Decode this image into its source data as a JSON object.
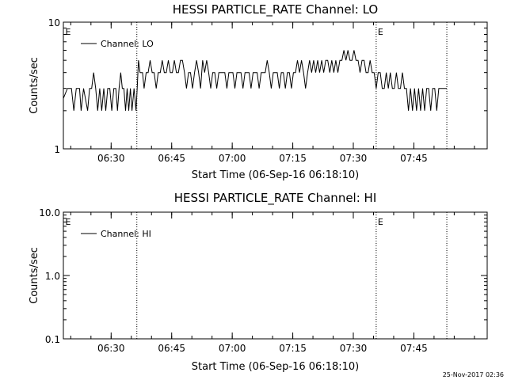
{
  "chart_data": [
    {
      "type": "line",
      "title": "HESSI PARTICLE_RATE Channel: LO",
      "xlabel": "Start Time (06-Sep-16 06:18:10)",
      "ylabel": "Counts/sec",
      "yscale": "log",
      "ylim": [
        1,
        10
      ],
      "xlim_minutes_after_start": [
        0,
        105
      ],
      "x_ticks": [
        {
          "label": "06:30",
          "minutes": 11.833
        },
        {
          "label": "06:45",
          "minutes": 26.833
        },
        {
          "label": "07:00",
          "minutes": 41.833
        },
        {
          "label": "07:15",
          "minutes": 56.833
        },
        {
          "label": "07:30",
          "minutes": 71.833
        },
        {
          "label": "07:45",
          "minutes": 86.833
        }
      ],
      "y_ticks": [
        {
          "label": "1",
          "value": 1
        },
        {
          "label": "10",
          "value": 10
        }
      ],
      "vlines_minutes": [
        18.2,
        77.5,
        95.0
      ],
      "annotations": [
        {
          "text": "E",
          "minutes": 0.3
        },
        {
          "text": "E",
          "minutes": 77.7
        }
      ],
      "legend": {
        "position": "top-left",
        "entries": [
          "Channel: LO"
        ]
      },
      "series": [
        {
          "name": "Channel: LO",
          "points": [
            [
              0.0,
              2.5
            ],
            [
              1.0,
              3.0
            ],
            [
              2.0,
              3.0
            ],
            [
              2.6,
              2.0
            ],
            [
              3.2,
              3.0
            ],
            [
              4.0,
              3.0
            ],
            [
              4.4,
              2.0
            ],
            [
              5.0,
              3.0
            ],
            [
              6.0,
              2.0
            ],
            [
              6.5,
              3.0
            ],
            [
              7.0,
              3.0
            ],
            [
              7.5,
              4.0
            ],
            [
              8.0,
              3.0
            ],
            [
              8.5,
              2.0
            ],
            [
              9.0,
              3.0
            ],
            [
              9.5,
              2.0
            ],
            [
              10.0,
              3.0
            ],
            [
              10.5,
              2.0
            ],
            [
              11.0,
              3.0
            ],
            [
              11.5,
              3.0
            ],
            [
              12.0,
              2.0
            ],
            [
              12.5,
              3.0
            ],
            [
              13.0,
              3.0
            ],
            [
              13.4,
              2.0
            ],
            [
              13.8,
              3.0
            ],
            [
              14.2,
              4.0
            ],
            [
              14.6,
              3.0
            ],
            [
              15.0,
              3.0
            ],
            [
              15.4,
              2.0
            ],
            [
              15.8,
              3.0
            ],
            [
              16.2,
              2.0
            ],
            [
              16.6,
              3.0
            ],
            [
              17.0,
              2.0
            ],
            [
              17.5,
              3.0
            ],
            [
              18.0,
              2.0
            ],
            [
              18.3,
              3.0
            ],
            [
              18.6,
              5.0
            ],
            [
              19.0,
              4.0
            ],
            [
              19.6,
              4.0
            ],
            [
              20.0,
              3.0
            ],
            [
              20.5,
              4.0
            ],
            [
              21.0,
              4.0
            ],
            [
              21.5,
              5.0
            ],
            [
              22.0,
              4.0
            ],
            [
              22.5,
              4.0
            ],
            [
              23.0,
              3.0
            ],
            [
              23.5,
              4.0
            ],
            [
              24.0,
              4.0
            ],
            [
              24.5,
              5.0
            ],
            [
              25.0,
              4.0
            ],
            [
              25.5,
              4.0
            ],
            [
              26.0,
              5.0
            ],
            [
              26.5,
              4.0
            ],
            [
              27.0,
              4.0
            ],
            [
              27.5,
              5.0
            ],
            [
              28.0,
              4.0
            ],
            [
              28.5,
              4.0
            ],
            [
              29.0,
              5.0
            ],
            [
              29.5,
              5.0
            ],
            [
              30.0,
              4.0
            ],
            [
              30.5,
              3.0
            ],
            [
              31.0,
              4.0
            ],
            [
              31.5,
              4.0
            ],
            [
              32.0,
              3.0
            ],
            [
              32.5,
              4.0
            ],
            [
              33.0,
              5.0
            ],
            [
              33.5,
              4.0
            ],
            [
              34.0,
              3.0
            ],
            [
              34.5,
              5.0
            ],
            [
              35.0,
              4.0
            ],
            [
              35.5,
              5.0
            ],
            [
              36.0,
              4.0
            ],
            [
              36.5,
              3.0
            ],
            [
              37.0,
              4.0
            ],
            [
              37.5,
              4.0
            ],
            [
              38.0,
              3.0
            ],
            [
              38.5,
              4.0
            ],
            [
              39.0,
              4.0
            ],
            [
              40.0,
              4.0
            ],
            [
              40.5,
              3.0
            ],
            [
              41.0,
              4.0
            ],
            [
              42.0,
              4.0
            ],
            [
              42.5,
              3.0
            ],
            [
              43.0,
              4.0
            ],
            [
              44.0,
              4.0
            ],
            [
              44.5,
              3.0
            ],
            [
              45.0,
              4.0
            ],
            [
              46.0,
              4.0
            ],
            [
              46.5,
              3.0
            ],
            [
              47.0,
              4.0
            ],
            [
              48.0,
              4.0
            ],
            [
              48.5,
              3.0
            ],
            [
              49.0,
              4.0
            ],
            [
              50.0,
              4.0
            ],
            [
              50.5,
              5.0
            ],
            [
              51.0,
              4.0
            ],
            [
              51.5,
              3.0
            ],
            [
              52.0,
              4.0
            ],
            [
              53.0,
              4.0
            ],
            [
              53.5,
              3.0
            ],
            [
              54.0,
              4.0
            ],
            [
              54.5,
              4.0
            ],
            [
              55.0,
              3.0
            ],
            [
              55.5,
              4.0
            ],
            [
              56.0,
              4.0
            ],
            [
              56.5,
              3.0
            ],
            [
              57.0,
              4.0
            ],
            [
              57.5,
              4.0
            ],
            [
              58.0,
              5.0
            ],
            [
              58.5,
              4.0
            ],
            [
              59.0,
              5.0
            ],
            [
              59.5,
              4.0
            ],
            [
              60.0,
              3.0
            ],
            [
              60.5,
              4.0
            ],
            [
              61.0,
              5.0
            ],
            [
              61.5,
              4.0
            ],
            [
              62.0,
              5.0
            ],
            [
              62.5,
              4.0
            ],
            [
              63.0,
              5.0
            ],
            [
              63.5,
              4.0
            ],
            [
              64.0,
              5.0
            ],
            [
              64.5,
              4.0
            ],
            [
              65.0,
              5.0
            ],
            [
              65.5,
              5.0
            ],
            [
              66.0,
              4.0
            ],
            [
              66.5,
              5.0
            ],
            [
              67.0,
              4.0
            ],
            [
              67.5,
              5.0
            ],
            [
              68.0,
              4.0
            ],
            [
              68.5,
              5.0
            ],
            [
              69.0,
              5.0
            ],
            [
              69.5,
              6.0
            ],
            [
              70.0,
              5.0
            ],
            [
              70.5,
              6.0
            ],
            [
              71.0,
              5.0
            ],
            [
              71.5,
              5.0
            ],
            [
              72.0,
              6.0
            ],
            [
              72.5,
              5.0
            ],
            [
              73.0,
              5.0
            ],
            [
              73.5,
              4.0
            ],
            [
              74.0,
              5.0
            ],
            [
              74.5,
              5.0
            ],
            [
              75.0,
              4.0
            ],
            [
              75.5,
              4.0
            ],
            [
              76.0,
              5.0
            ],
            [
              76.5,
              4.0
            ],
            [
              77.0,
              4.0
            ],
            [
              77.5,
              3.0
            ],
            [
              78.0,
              4.0
            ],
            [
              78.5,
              4.0
            ],
            [
              79.0,
              3.0
            ],
            [
              79.5,
              3.0
            ],
            [
              80.0,
              4.0
            ],
            [
              80.5,
              3.0
            ],
            [
              81.0,
              4.0
            ],
            [
              81.5,
              3.0
            ],
            [
              82.0,
              3.0
            ],
            [
              82.5,
              4.0
            ],
            [
              83.0,
              3.0
            ],
            [
              83.5,
              3.0
            ],
            [
              84.0,
              4.0
            ],
            [
              84.5,
              3.0
            ],
            [
              85.0,
              3.0
            ],
            [
              85.5,
              2.0
            ],
            [
              86.0,
              3.0
            ],
            [
              86.5,
              2.0
            ],
            [
              87.0,
              3.0
            ],
            [
              87.5,
              2.0
            ],
            [
              88.0,
              3.0
            ],
            [
              88.5,
              2.0
            ],
            [
              89.0,
              3.0
            ],
            [
              89.5,
              2.0
            ],
            [
              90.0,
              3.0
            ],
            [
              90.5,
              3.0
            ],
            [
              91.0,
              2.0
            ],
            [
              91.5,
              3.0
            ],
            [
              92.0,
              3.0
            ],
            [
              92.5,
              2.0
            ],
            [
              93.0,
              3.0
            ],
            [
              93.5,
              3.0
            ],
            [
              94.0,
              3.0
            ],
            [
              95.0,
              3.0
            ]
          ]
        }
      ]
    },
    {
      "type": "line",
      "title": "HESSI PARTICLE_RATE Channel: HI",
      "xlabel": "Start Time (06-Sep-16 06:18:10)",
      "ylabel": "Counts/sec",
      "yscale": "log",
      "ylim": [
        0.1,
        10
      ],
      "xlim_minutes_after_start": [
        0,
        105
      ],
      "x_ticks": [
        {
          "label": "06:30",
          "minutes": 11.833
        },
        {
          "label": "06:45",
          "minutes": 26.833
        },
        {
          "label": "07:00",
          "minutes": 41.833
        },
        {
          "label": "07:15",
          "minutes": 56.833
        },
        {
          "label": "07:30",
          "minutes": 71.833
        },
        {
          "label": "07:45",
          "minutes": 86.833
        }
      ],
      "y_ticks": [
        {
          "label": "0.1",
          "value": 0.1
        },
        {
          "label": "1.0",
          "value": 1
        },
        {
          "label": "10.0",
          "value": 10
        }
      ],
      "vlines_minutes": [
        18.2,
        77.5,
        95.0
      ],
      "annotations": [
        {
          "text": "E",
          "minutes": 0.3
        },
        {
          "text": "E",
          "minutes": 77.7
        }
      ],
      "legend": {
        "position": "top-left",
        "entries": [
          "Channel: HI"
        ]
      },
      "series": [
        {
          "name": "Channel: HI",
          "points": []
        }
      ]
    }
  ],
  "footer": {
    "timestamp": "25-Nov-2017 02:36"
  }
}
